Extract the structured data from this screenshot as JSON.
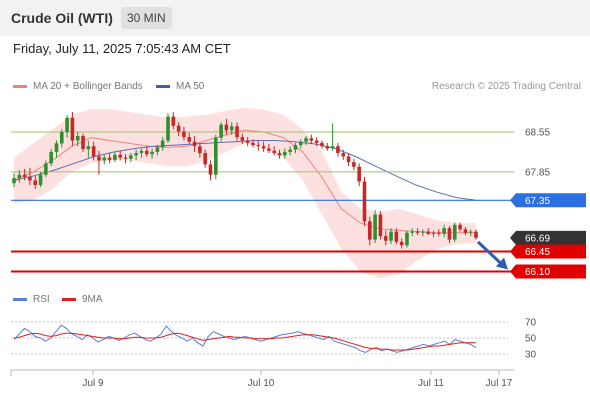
{
  "header": {
    "title": "Crude Oil (WTI)",
    "interval": "30 MIN",
    "timestamp": "Friday, July 11, 2025 7:05:43 AM CET"
  },
  "legend": {
    "ma20_label": "MA 20 + Bollinger Bands",
    "ma50_label": "MA 50",
    "rsi_label": "RSI",
    "ma9_label": "9MA",
    "copyright": "Research © 2025 Trading Central"
  },
  "colors": {
    "up_candle": "#2f8f2f",
    "down_candle": "#c62828",
    "bollinger_fill": "#fde0e0",
    "ma20": "#f08080",
    "ma50": "#5a6fb0",
    "resistance": "#9bc46a",
    "pivot": "#2c6fe0",
    "support": "#e00000",
    "last_price": "#333333",
    "rsi": "#5b7fd8",
    "rsi_ma": "#e02020"
  },
  "chart_data": [
    {
      "type": "candlestick",
      "x_tick_labels": [
        "Jul 9",
        "Jul 10",
        "Jul 11",
        "Jul 17"
      ],
      "y_range": [
        65.95,
        69.2
      ],
      "levels": [
        {
          "name": "resistance",
          "value": 68.55,
          "label": "68.55"
        },
        {
          "name": "resistance",
          "value": 67.85,
          "label": "67.85"
        },
        {
          "name": "pivot",
          "value": 67.35,
          "label": "67.35"
        },
        {
          "name": "last",
          "value": 66.69,
          "label": "66.69"
        },
        {
          "name": "support",
          "value": 66.45,
          "label": "66.45"
        },
        {
          "name": "support",
          "value": 66.1,
          "label": "66.10"
        }
      ],
      "ohlc": [
        [
          67.65,
          67.82,
          67.58,
          67.74
        ],
        [
          67.74,
          67.88,
          67.66,
          67.8
        ],
        [
          67.8,
          67.9,
          67.7,
          67.76
        ],
        [
          67.76,
          67.92,
          67.62,
          67.7
        ],
        [
          67.7,
          67.78,
          67.55,
          67.62
        ],
        [
          67.62,
          67.85,
          67.58,
          67.8
        ],
        [
          67.8,
          68.05,
          67.76,
          68.0
        ],
        [
          68.0,
          68.25,
          67.95,
          68.2
        ],
        [
          68.2,
          68.4,
          68.1,
          68.35
        ],
        [
          68.35,
          68.6,
          68.28,
          68.55
        ],
        [
          68.55,
          68.85,
          68.45,
          68.8
        ],
        [
          68.8,
          68.9,
          68.3,
          68.4
        ],
        [
          68.4,
          68.55,
          68.3,
          68.48
        ],
        [
          68.48,
          68.52,
          68.2,
          68.25
        ],
        [
          68.25,
          68.4,
          68.1,
          68.3
        ],
        [
          68.3,
          68.38,
          68.05,
          68.12
        ],
        [
          68.12,
          68.22,
          67.8,
          68.05
        ],
        [
          68.05,
          68.15,
          67.98,
          68.1
        ],
        [
          68.1,
          68.18,
          68.0,
          68.06
        ],
        [
          68.06,
          68.2,
          68.02,
          68.15
        ],
        [
          68.15,
          68.22,
          68.05,
          68.1
        ],
        [
          68.1,
          68.16,
          68.0,
          68.08
        ],
        [
          68.08,
          68.18,
          68.02,
          68.14
        ],
        [
          68.14,
          68.24,
          68.06,
          68.18
        ],
        [
          68.18,
          68.26,
          68.1,
          68.22
        ],
        [
          68.22,
          68.3,
          68.12,
          68.16
        ],
        [
          68.16,
          68.26,
          68.08,
          68.2
        ],
        [
          68.2,
          68.32,
          68.14,
          68.28
        ],
        [
          68.28,
          68.46,
          68.22,
          68.4
        ],
        [
          68.4,
          68.88,
          68.36,
          68.82
        ],
        [
          68.82,
          68.9,
          68.6,
          68.66
        ],
        [
          68.66,
          68.72,
          68.48,
          68.56
        ],
        [
          68.56,
          68.64,
          68.4,
          68.46
        ],
        [
          68.46,
          68.54,
          68.34,
          68.38
        ],
        [
          68.38,
          68.48,
          68.2,
          68.3
        ],
        [
          68.3,
          68.36,
          68.1,
          68.18
        ],
        [
          68.18,
          68.24,
          67.92,
          67.98
        ],
        [
          67.98,
          68.05,
          67.7,
          67.8
        ],
        [
          67.8,
          68.5,
          67.72,
          68.45
        ],
        [
          68.45,
          68.72,
          68.38,
          68.68
        ],
        [
          68.68,
          68.78,
          68.5,
          68.58
        ],
        [
          68.58,
          68.72,
          68.5,
          68.65
        ],
        [
          68.65,
          68.72,
          68.4,
          68.46
        ],
        [
          68.46,
          68.52,
          68.34,
          68.4
        ],
        [
          68.4,
          68.46,
          68.3,
          68.36
        ],
        [
          68.36,
          68.42,
          68.28,
          68.32
        ],
        [
          68.32,
          68.4,
          68.22,
          68.3
        ],
        [
          68.3,
          68.38,
          68.2,
          68.26
        ],
        [
          68.26,
          68.34,
          68.18,
          68.22
        ],
        [
          68.22,
          68.3,
          68.14,
          68.18
        ],
        [
          68.18,
          68.24,
          68.08,
          68.14
        ],
        [
          68.14,
          68.26,
          68.08,
          68.2
        ],
        [
          68.2,
          68.3,
          68.14,
          68.24
        ],
        [
          68.24,
          68.36,
          68.18,
          68.32
        ],
        [
          68.32,
          68.42,
          68.26,
          68.38
        ],
        [
          68.38,
          68.48,
          68.32,
          68.44
        ],
        [
          68.44,
          68.5,
          68.34,
          68.4
        ],
        [
          68.4,
          68.46,
          68.3,
          68.36
        ],
        [
          68.36,
          68.4,
          68.26,
          68.3
        ],
        [
          68.3,
          68.36,
          68.22,
          68.26
        ],
        [
          68.26,
          68.7,
          68.22,
          68.3
        ],
        [
          68.3,
          68.36,
          68.12,
          68.18
        ],
        [
          68.18,
          68.24,
          68.06,
          68.12
        ],
        [
          68.12,
          68.18,
          67.95,
          68.02
        ],
        [
          68.02,
          68.08,
          67.88,
          67.94
        ],
        [
          67.94,
          68.0,
          67.6,
          67.68
        ],
        [
          67.68,
          67.76,
          66.9,
          66.98
        ],
        [
          66.98,
          67.06,
          66.56,
          66.66
        ],
        [
          66.66,
          67.18,
          66.6,
          67.1
        ],
        [
          67.1,
          67.16,
          66.66,
          66.72
        ],
        [
          66.72,
          66.82,
          66.56,
          66.64
        ],
        [
          66.64,
          66.86,
          66.58,
          66.8
        ],
        [
          66.8,
          66.86,
          66.58,
          66.62
        ],
        [
          66.62,
          66.68,
          66.5,
          66.56
        ],
        [
          66.56,
          66.82,
          66.52,
          66.78
        ],
        [
          66.78,
          66.86,
          66.72,
          66.8
        ],
        [
          66.8,
          66.86,
          66.74,
          66.78
        ],
        [
          66.78,
          66.84,
          66.72,
          66.8
        ],
        [
          66.8,
          66.86,
          66.74,
          66.76
        ],
        [
          66.76,
          66.82,
          66.7,
          66.78
        ],
        [
          66.78,
          66.84,
          66.72,
          66.76
        ],
        [
          66.76,
          66.92,
          66.7,
          66.86
        ],
        [
          66.86,
          66.9,
          66.6,
          66.66
        ],
        [
          66.66,
          66.96,
          66.62,
          66.92
        ],
        [
          66.92,
          66.96,
          66.8,
          66.84
        ],
        [
          66.84,
          66.88,
          66.74,
          66.78
        ],
        [
          66.78,
          66.84,
          66.72,
          66.8
        ],
        [
          66.8,
          66.84,
          66.66,
          66.69
        ]
      ],
      "bollinger_upper": [
        68.1,
        68.35,
        68.6,
        68.85,
        68.95,
        68.95,
        68.9,
        68.85,
        68.8,
        68.82,
        68.85,
        68.92,
        68.98,
        68.94,
        68.85,
        68.6,
        68.2,
        67.5,
        67.2,
        67.15,
        67.2,
        67.1,
        67.0,
        66.95,
        66.95
      ],
      "bollinger_lower": [
        67.3,
        67.35,
        67.55,
        67.85,
        68.0,
        68.05,
        68.05,
        68.0,
        67.95,
        67.95,
        68.05,
        68.2,
        68.35,
        68.3,
        68.1,
        67.7,
        67.1,
        66.5,
        66.1,
        65.98,
        66.05,
        66.3,
        66.5,
        66.58,
        66.6
      ],
      "ma20": [
        67.7,
        67.85,
        68.05,
        68.3,
        68.45,
        68.4,
        68.35,
        68.3,
        68.28,
        68.3,
        68.4,
        68.5,
        68.58,
        68.55,
        68.45,
        68.2,
        67.75,
        67.2,
        66.95,
        66.85,
        66.82,
        66.8,
        66.78,
        66.78,
        66.78
      ],
      "ma50": [
        67.7,
        67.78,
        67.88,
        68.0,
        68.12,
        68.2,
        68.26,
        68.3,
        68.32,
        68.34,
        68.36,
        68.38,
        68.4,
        68.4,
        68.38,
        68.34,
        68.26,
        68.12,
        67.95,
        67.78,
        67.62,
        67.5,
        67.4,
        67.35
      ],
      "forecast": {
        "from": 66.69,
        "to": 66.1
      }
    },
    {
      "type": "line",
      "name": "RSI",
      "y_ticks": [
        70,
        50,
        30
      ],
      "y_range": [
        15,
        85
      ],
      "series": [
        {
          "name": "RSI",
          "values": [
            48,
            55,
            62,
            58,
            52,
            50,
            46,
            50,
            58,
            66,
            62,
            55,
            52,
            48,
            54,
            50,
            45,
            48,
            52,
            50,
            47,
            50,
            54,
            56,
            52,
            48,
            46,
            50,
            55,
            65,
            58,
            53,
            50,
            46,
            50,
            44,
            40,
            52,
            58,
            55,
            52,
            50,
            48,
            50,
            52,
            50,
            48,
            46,
            48,
            50,
            52,
            54,
            55,
            56,
            58,
            56,
            54,
            52,
            50,
            48,
            52,
            46,
            44,
            42,
            40,
            38,
            34,
            32,
            36,
            38,
            34,
            36,
            34,
            32,
            34,
            36,
            38,
            40,
            42,
            40,
            42,
            44,
            46,
            42,
            48,
            46,
            44,
            42,
            38
          ]
        },
        {
          "name": "9MA",
          "values": [
            50,
            51,
            53,
            55,
            56,
            55,
            53,
            52,
            53,
            55,
            56,
            56,
            55,
            54,
            53,
            52,
            51,
            50,
            50,
            50,
            49,
            49,
            50,
            51,
            51,
            50,
            50,
            50,
            51,
            53,
            55,
            56,
            55,
            53,
            51,
            49,
            47,
            48,
            49,
            50,
            51,
            52,
            51,
            51,
            50,
            50,
            49,
            49,
            49,
            49,
            50,
            50,
            51,
            52,
            53,
            54,
            54,
            54,
            53,
            52,
            51,
            50,
            48,
            46,
            44,
            42,
            40,
            38,
            37,
            37,
            36,
            36,
            35,
            35,
            35,
            35,
            36,
            37,
            38,
            39,
            40,
            40,
            41,
            42,
            43,
            44,
            44,
            44,
            44
          ]
        }
      ]
    }
  ]
}
